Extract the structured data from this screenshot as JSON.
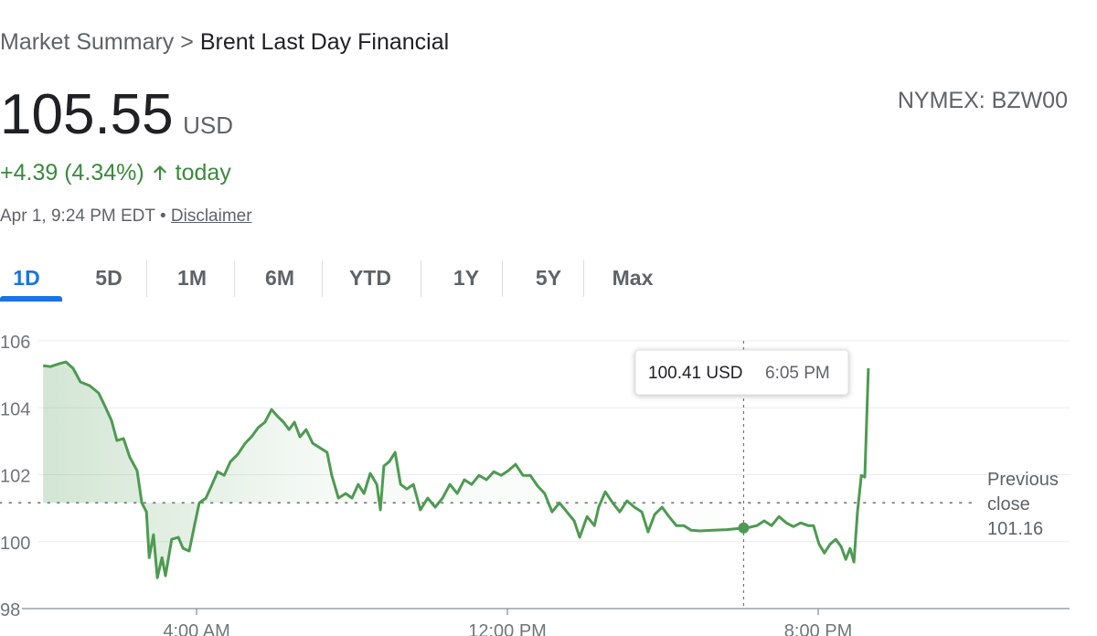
{
  "breadcrumb": {
    "parent": "Market Summary",
    "separator": ">",
    "current": "Brent Last Day Financial"
  },
  "quote": {
    "price": "105.55",
    "currency": "USD",
    "exchange": "NYMEX: BZW00",
    "change": "+4.39 (4.34%)",
    "period": "today",
    "timestamp": "Apr 1, 9:24 PM EDT",
    "timestamp_separator": "•",
    "disclaimer": "Disclaimer"
  },
  "tabs": [
    "1D",
    "5D",
    "1M",
    "6M",
    "YTD",
    "1Y",
    "5Y",
    "Max"
  ],
  "selected_tab": 0,
  "chart_data": {
    "type": "line",
    "color": "#4e9a52",
    "x": [
      0.05,
      0.24,
      0.47,
      0.64,
      0.82,
      1.01,
      1.25,
      1.48,
      1.65,
      1.81,
      1.95,
      2.12,
      2.28,
      2.47,
      2.59,
      2.71,
      2.78,
      2.89,
      2.99,
      3.11,
      3.2,
      3.36,
      3.53,
      3.65,
      3.81,
      3.93,
      4.07,
      4.24,
      4.4,
      4.54,
      4.71,
      4.87,
      5.06,
      5.25,
      5.41,
      5.58,
      5.76,
      5.93,
      6.07,
      6.24,
      6.38,
      6.52,
      6.66,
      6.82,
      6.99,
      7.18,
      7.36,
      7.48,
      7.65,
      7.84,
      8.0,
      8.16,
      8.31,
      8.47,
      8.64,
      8.73,
      8.82,
      8.96,
      9.11,
      9.25,
      9.41,
      9.58,
      9.76,
      9.95,
      10.14,
      10.33,
      10.52,
      10.71,
      10.89,
      11.08,
      11.27,
      11.46,
      11.65,
      11.84,
      12.02,
      12.21,
      12.4,
      12.59,
      12.78,
      12.96,
      13.15,
      13.34,
      13.53,
      13.72,
      13.86,
      14.05,
      14.24,
      14.35,
      14.52,
      14.71,
      14.89,
      15.08,
      15.27,
      15.46,
      15.62,
      15.79,
      15.98,
      16.16,
      16.35,
      16.54,
      16.73,
      16.96,
      17.29,
      17.65,
      18.08,
      18.24,
      18.42,
      18.61,
      18.8,
      18.99,
      19.18,
      19.36,
      19.55,
      19.74,
      19.88,
      20.02,
      20.16,
      20.31,
      20.45,
      20.59,
      20.71,
      20.82,
      20.92,
      21.01,
      21.11,
      21.2,
      21.29
    ],
    "values": [
      105.26,
      105.23,
      105.32,
      105.37,
      105.18,
      104.77,
      104.66,
      104.44,
      104.03,
      103.62,
      103.02,
      103.08,
      102.53,
      102.12,
      101.16,
      100.89,
      99.52,
      100.21,
      98.92,
      99.52,
      98.98,
      100.07,
      100.13,
      99.8,
      99.72,
      100.4,
      101.16,
      101.3,
      101.71,
      102.09,
      101.98,
      102.39,
      102.61,
      102.94,
      103.13,
      103.4,
      103.57,
      103.95,
      103.76,
      103.57,
      103.35,
      103.57,
      103.13,
      103.35,
      102.94,
      102.8,
      102.67,
      101.98,
      101.3,
      101.44,
      101.3,
      101.71,
      101.44,
      102.04,
      101.71,
      100.95,
      102.26,
      102.39,
      102.67,
      101.71,
      101.57,
      101.71,
      100.95,
      101.3,
      101.03,
      101.3,
      101.71,
      101.44,
      101.85,
      101.71,
      101.98,
      101.85,
      102.09,
      101.98,
      102.12,
      102.31,
      101.98,
      101.98,
      101.66,
      101.44,
      100.89,
      101.16,
      100.89,
      100.62,
      100.13,
      100.75,
      100.48,
      101.03,
      101.49,
      101.16,
      100.89,
      101.22,
      101.03,
      100.89,
      100.29,
      100.81,
      101.03,
      100.75,
      100.48,
      100.48,
      100.34,
      100.32,
      100.34,
      100.36,
      100.41,
      100.43,
      100.48,
      100.62,
      100.48,
      100.75,
      100.56,
      100.45,
      100.56,
      100.48,
      100.48,
      99.93,
      99.66,
      99.93,
      100.07,
      99.85,
      99.47,
      99.8,
      99.39,
      100.89,
      101.98,
      101.93,
      105.18
    ],
    "xlim": [
      -1.06,
      26.47
    ],
    "xticks": [
      {
        "value": 4,
        "label": "4:00 AM"
      },
      {
        "value": 12,
        "label": "12:00 PM"
      },
      {
        "value": 20,
        "label": "8:00 PM"
      }
    ],
    "ylim": [
      98,
      106
    ],
    "yticks": [
      98,
      100,
      102,
      104,
      106
    ],
    "grid": true,
    "reference_line": {
      "value": 101.16,
      "label": "Previous close"
    },
    "tooltip": {
      "x": 18.08,
      "value": 100.41,
      "value_label": "100.41 USD",
      "time_label": "6:05 PM"
    }
  }
}
